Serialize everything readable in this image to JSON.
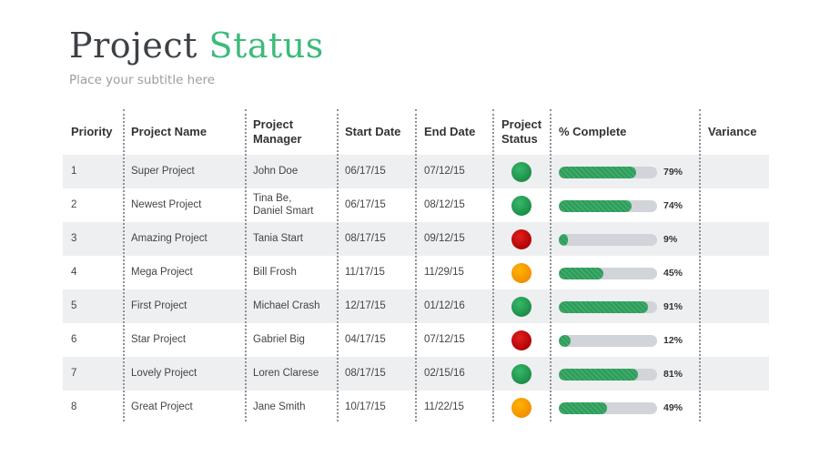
{
  "page": {
    "title_part1": "Project",
    "title_part2": "Status",
    "subtitle": "Place your subtitle here"
  },
  "colors": {
    "accent": "#3dbb7a",
    "status_green": "#1f9a4f",
    "status_red": "#cc0000",
    "status_orange": "#f7a000",
    "progress_fill": "#2fa35e",
    "progress_track": "#d1d4d8"
  },
  "table": {
    "headers": {
      "priority": "Priority",
      "name": "Project Name",
      "manager_line1": "Project",
      "manager_line2": "Manager",
      "start": "Start Date",
      "end": "End Date",
      "status_line1": "Project",
      "status_line2": "Status",
      "complete": "% Complete",
      "variance": "Variance"
    },
    "rows": [
      {
        "priority": "1",
        "name": "Super Project",
        "manager_line1": "John Doe",
        "manager_line2": "",
        "start": "06/17/15",
        "end": "07/12/15",
        "status": "green",
        "percent": 79,
        "percent_label": "79%",
        "variance": ""
      },
      {
        "priority": "2",
        "name": "Newest Project",
        "manager_line1": "Tina Be,",
        "manager_line2": "Daniel Smart",
        "start": "06/17/15",
        "end": "08/12/15",
        "status": "green",
        "percent": 74,
        "percent_label": "74%",
        "variance": ""
      },
      {
        "priority": "3",
        "name": "Amazing Project",
        "manager_line1": "Tania Start",
        "manager_line2": "",
        "start": "08/17/15",
        "end": "09/12/15",
        "status": "red",
        "percent": 9,
        "percent_label": "9%",
        "variance": ""
      },
      {
        "priority": "4",
        "name": "Mega Project",
        "manager_line1": "Bill Frosh",
        "manager_line2": "",
        "start": "11/17/15",
        "end": "11/29/15",
        "status": "orange",
        "percent": 45,
        "percent_label": "45%",
        "variance": ""
      },
      {
        "priority": "5",
        "name": "First Project",
        "manager_line1": "Michael Crash",
        "manager_line2": "",
        "start": "12/17/15",
        "end": "01/12/16",
        "status": "green",
        "percent": 91,
        "percent_label": "91%",
        "variance": ""
      },
      {
        "priority": "6",
        "name": "Star Project",
        "manager_line1": "Gabriel Big",
        "manager_line2": "",
        "start": "04/17/15",
        "end": "07/12/15",
        "status": "red",
        "percent": 12,
        "percent_label": "12%",
        "variance": ""
      },
      {
        "priority": "7",
        "name": "Lovely Project",
        "manager_line1": "Loren Clarese",
        "manager_line2": "",
        "start": "08/17/15",
        "end": "02/15/16",
        "status": "green",
        "percent": 81,
        "percent_label": "81%",
        "variance": ""
      },
      {
        "priority": "8",
        "name": "Great Project",
        "manager_line1": "Jane Smith",
        "manager_line2": "",
        "start": "10/17/15",
        "end": "11/22/15",
        "status": "orange",
        "percent": 49,
        "percent_label": "49%",
        "variance": ""
      }
    ]
  }
}
